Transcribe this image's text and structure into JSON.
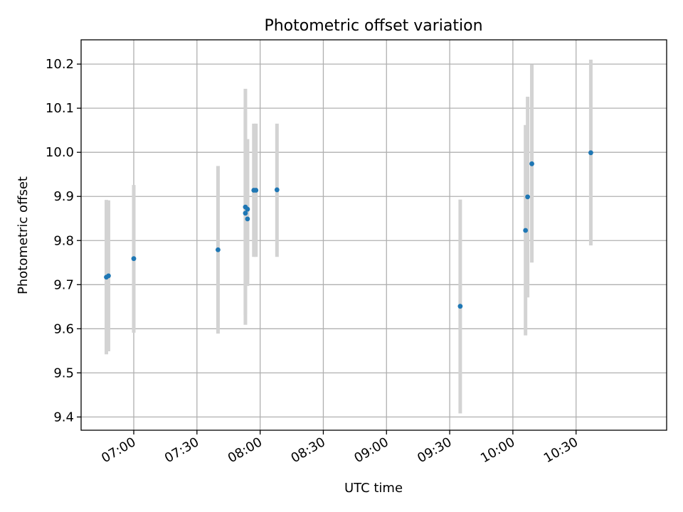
{
  "chart_data": {
    "type": "scatter",
    "title": "Photometric offset variation",
    "xlabel": "UTC time",
    "ylabel": "Photometric offset",
    "x_axis_type": "time",
    "xlim": [
      "06:35",
      "11:13"
    ],
    "ylim": [
      9.37,
      10.255
    ],
    "x_ticks": [
      "07:00",
      "07:30",
      "08:00",
      "08:30",
      "09:00",
      "09:30",
      "10:00",
      "10:30"
    ],
    "y_ticks": [
      "9.4",
      "9.5",
      "9.6",
      "9.7",
      "9.8",
      "9.9",
      "10.0",
      "10.1",
      "10.2"
    ],
    "grid": true,
    "marker_color": "#1f77b4",
    "errorbar_color": "#d3d3d3",
    "points": [
      {
        "x": "06:47",
        "y": 9.717,
        "err_low": 9.542,
        "err_high": 9.892
      },
      {
        "x": "06:48",
        "y": 9.72,
        "err_low": 9.549,
        "err_high": 9.891
      },
      {
        "x": "07:00",
        "y": 9.759,
        "err_low": 9.591,
        "err_high": 9.926
      },
      {
        "x": "07:40",
        "y": 9.779,
        "err_low": 9.589,
        "err_high": 9.969
      },
      {
        "x": "07:53",
        "y": 9.876,
        "err_low": 9.609,
        "err_high": 10.144
      },
      {
        "x": "07:53",
        "y": 9.862,
        "err_low": 9.632,
        "err_high": 10.092
      },
      {
        "x": "07:54",
        "y": 9.849,
        "err_low": 9.697,
        "err_high": 10.001
      },
      {
        "x": "07:54",
        "y": 9.871,
        "err_low": 9.712,
        "err_high": 10.03
      },
      {
        "x": "07:57",
        "y": 9.914,
        "err_low": 9.763,
        "err_high": 10.065
      },
      {
        "x": "07:58",
        "y": 9.914,
        "err_low": 9.763,
        "err_high": 10.065
      },
      {
        "x": "08:08",
        "y": 9.915,
        "err_low": 9.763,
        "err_high": 10.065
      },
      {
        "x": "09:35",
        "y": 9.651,
        "err_low": 9.408,
        "err_high": 9.893
      },
      {
        "x": "10:06",
        "y": 9.823,
        "err_low": 9.585,
        "err_high": 10.062
      },
      {
        "x": "10:07",
        "y": 9.899,
        "err_low": 9.671,
        "err_high": 10.126
      },
      {
        "x": "10:09",
        "y": 9.974,
        "err_low": 9.75,
        "err_high": 10.199
      },
      {
        "x": "10:37",
        "y": 9.999,
        "err_low": 9.789,
        "err_high": 10.21
      }
    ]
  }
}
